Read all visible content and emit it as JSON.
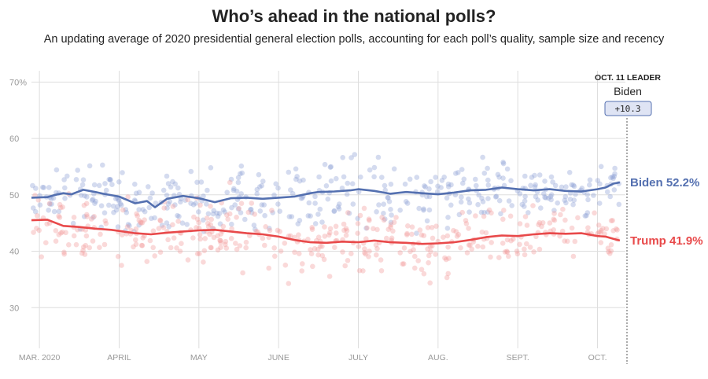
{
  "chart_data": {
    "type": "line",
    "title": "Who’s ahead in the national polls?",
    "subtitle": "An updating average of 2020 presidential general election polls, accounting for each poll’s quality, sample size and recency",
    "ylim": [
      20,
      72
    ],
    "y_ticks": [
      "70%",
      "60",
      "50",
      "40",
      "30"
    ],
    "y_tick_values": [
      70,
      60,
      50,
      40,
      30
    ],
    "xlim": [
      -0.1,
      7.35
    ],
    "x_tick_labels": [
      "MAR. 2020",
      "APRIL",
      "MAY",
      "JUNE",
      "JULY",
      "AUG.",
      "SEPT.",
      "OCT."
    ],
    "x_tick_positions": [
      0,
      1,
      2,
      3,
      4,
      5,
      6,
      7
    ],
    "grid": true,
    "series": [
      {
        "name": "Biden",
        "label": "Biden 52.2%",
        "color": "#5470b0",
        "dot_color": "#8ea0d4",
        "x": [
          -0.1,
          0.1,
          0.2,
          0.3,
          0.4,
          0.55,
          0.7,
          0.8,
          1.0,
          1.2,
          1.35,
          1.45,
          1.6,
          1.8,
          2.0,
          2.2,
          2.4,
          2.6,
          2.8,
          3.0,
          3.2,
          3.4,
          3.5,
          3.7,
          3.9,
          4.0,
          4.2,
          4.4,
          4.6,
          4.8,
          5.0,
          5.2,
          5.4,
          5.6,
          5.8,
          6.0,
          6.2,
          6.4,
          6.6,
          6.8,
          7.0,
          7.1,
          7.2,
          7.28
        ],
        "values": [
          49.5,
          49.6,
          50.0,
          50.3,
          50.1,
          50.9,
          50.5,
          50.2,
          49.7,
          48.5,
          48.9,
          47.8,
          49.3,
          49.8,
          49.4,
          48.7,
          49.4,
          49.5,
          49.3,
          49.5,
          49.7,
          50.3,
          50.5,
          50.6,
          50.8,
          51.0,
          50.7,
          50.2,
          50.5,
          50.3,
          50.1,
          50.4,
          50.8,
          50.9,
          51.3,
          51.0,
          50.8,
          51.0,
          50.7,
          50.6,
          51.0,
          51.3,
          52.0,
          52.2
        ]
      },
      {
        "name": "Trump",
        "label": "Trump 41.9%",
        "color": "#e8494a",
        "dot_color": "#f29a9a",
        "x": [
          -0.1,
          0.1,
          0.3,
          0.5,
          0.7,
          0.9,
          1.0,
          1.2,
          1.4,
          1.6,
          1.8,
          2.0,
          2.2,
          2.4,
          2.6,
          2.8,
          3.0,
          3.2,
          3.4,
          3.6,
          3.8,
          4.0,
          4.2,
          4.4,
          4.6,
          4.8,
          5.0,
          5.2,
          5.4,
          5.6,
          5.8,
          6.0,
          6.2,
          6.4,
          6.6,
          6.8,
          7.0,
          7.1,
          7.2,
          7.28
        ],
        "values": [
          45.5,
          45.6,
          44.5,
          44.3,
          44.0,
          43.8,
          43.6,
          43.2,
          43.0,
          43.3,
          43.5,
          43.7,
          43.8,
          43.5,
          43.2,
          43.0,
          42.6,
          42.0,
          41.6,
          41.5,
          41.7,
          41.6,
          41.9,
          41.6,
          41.5,
          41.3,
          41.4,
          41.6,
          42.0,
          42.5,
          42.8,
          42.7,
          43.0,
          43.2,
          43.1,
          43.2,
          42.7,
          42.6,
          42.2,
          41.9
        ]
      }
    ],
    "leader": {
      "heading": "OCT. 11 LEADER",
      "name": "Biden",
      "margin": "+10.3"
    }
  }
}
